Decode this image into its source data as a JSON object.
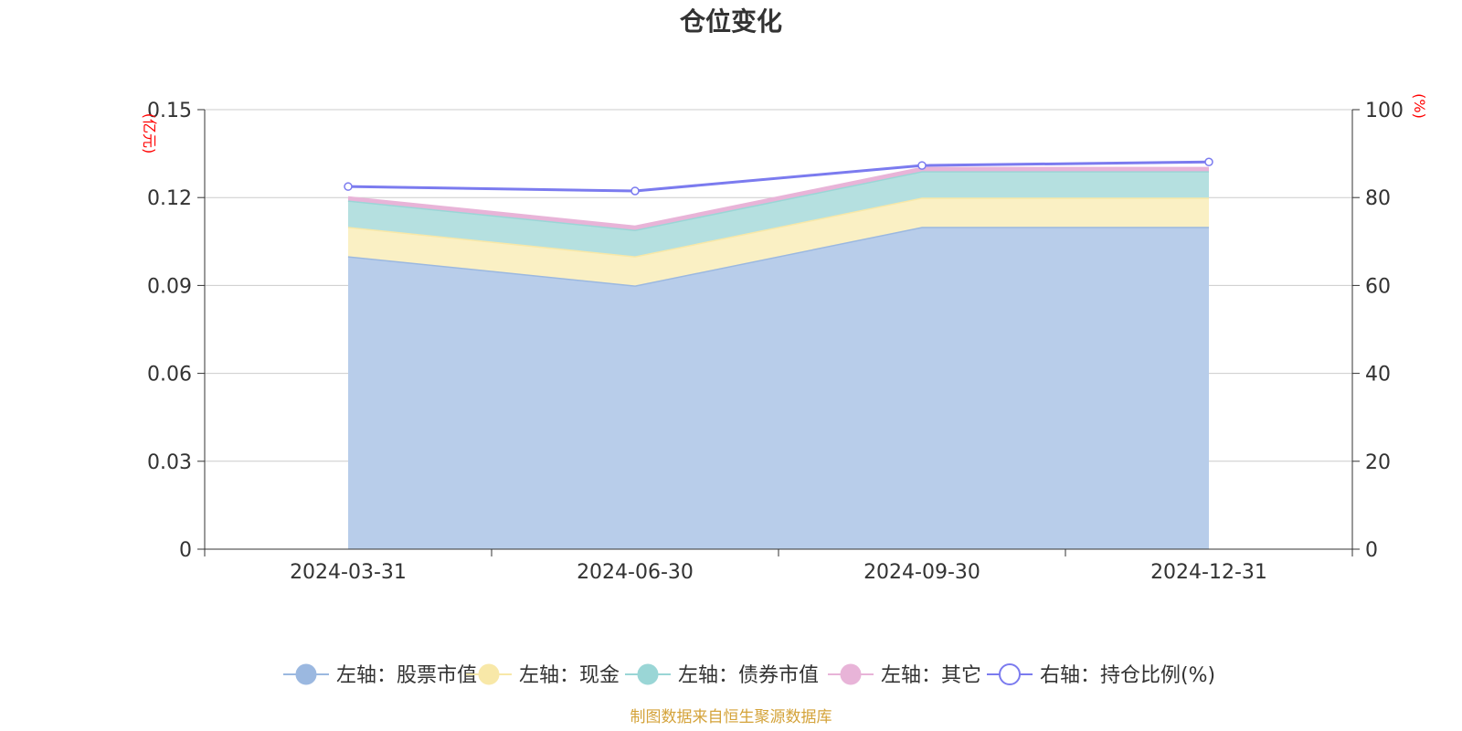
{
  "chart_data": {
    "type": "area",
    "title": "仓位变化",
    "categories": [
      "2024-03-31",
      "2024-06-30",
      "2024-09-30",
      "2024-12-31"
    ],
    "left_axis": {
      "unit": "(亿元)",
      "ylim": [
        0,
        0.15
      ],
      "ticks": [
        "0",
        "0.03",
        "0.06",
        "0.09",
        "0.12",
        "0.15"
      ],
      "tick_values": [
        0,
        0.03,
        0.06,
        0.09,
        0.12,
        0.15
      ]
    },
    "right_axis": {
      "unit": "(%)",
      "ylim": [
        0,
        100
      ],
      "ticks": [
        "0",
        "20",
        "40",
        "60",
        "80",
        "100"
      ],
      "tick_values": [
        0,
        20,
        40,
        60,
        80,
        100
      ]
    },
    "stacked_series": [
      {
        "name": "左轴：股票市值",
        "values": [
          0.1,
          0.09,
          0.11,
          0.11
        ],
        "color": "#9bb8e0",
        "fill": "#b8cdea"
      },
      {
        "name": "左轴：现金",
        "values": [
          0.01,
          0.01,
          0.01,
          0.01
        ],
        "color": "#f8e8a8",
        "fill": "#faf0c4"
      },
      {
        "name": "左轴：债券市值",
        "values": [
          0.009,
          0.009,
          0.009,
          0.009
        ],
        "color": "#9ad6d6",
        "fill": "#b5e0e0"
      },
      {
        "name": "左轴：其它",
        "values": [
          0.001,
          0.001,
          0.001,
          0.001
        ],
        "color": "#e8b4d8",
        "fill": "#e8b4d8"
      }
    ],
    "line_series": {
      "name": "右轴：持仓比例(%)",
      "values": [
        82.5,
        81.5,
        87.3,
        88.1
      ],
      "color": "#7b7bef"
    },
    "grid": true,
    "legend_position": "bottom"
  },
  "source": "制图数据来自恒生聚源数据库"
}
